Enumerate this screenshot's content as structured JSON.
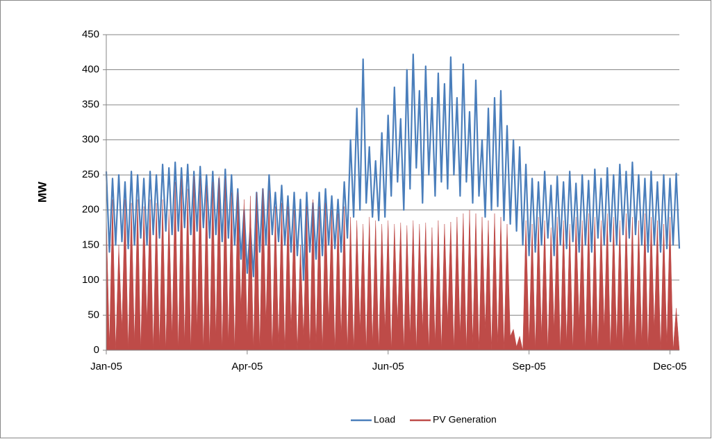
{
  "chart_data": {
    "type": "line",
    "ylabel": "MW",
    "categories": [
      "Jan-05",
      null,
      null,
      null,
      null,
      null,
      null,
      null,
      null,
      null,
      null,
      null,
      null,
      null,
      null,
      null,
      null,
      null,
      null,
      null,
      null,
      null,
      null,
      null,
      null,
      null,
      null,
      null,
      null,
      null,
      null,
      null,
      null,
      null,
      null,
      null,
      null,
      null,
      null,
      null,
      null,
      null,
      null,
      null,
      null,
      "Apr-05",
      null,
      null,
      null,
      null,
      null,
      null,
      null,
      null,
      null,
      null,
      null,
      null,
      null,
      null,
      null,
      null,
      null,
      null,
      null,
      null,
      null,
      null,
      null,
      null,
      null,
      null,
      null,
      null,
      null,
      null,
      null,
      null,
      null,
      null,
      null,
      null,
      null,
      null,
      null,
      null,
      null,
      null,
      null,
      null,
      "Jun-05",
      null,
      null,
      null,
      null,
      null,
      null,
      null,
      null,
      null,
      null,
      null,
      null,
      null,
      null,
      null,
      null,
      null,
      null,
      null,
      null,
      null,
      null,
      null,
      null,
      null,
      null,
      null,
      null,
      null,
      null,
      null,
      null,
      null,
      null,
      null,
      null,
      null,
      null,
      null,
      null,
      null,
      null,
      null,
      null,
      "Sep-05",
      null,
      null,
      null,
      null,
      null,
      null,
      null,
      null,
      null,
      null,
      null,
      null,
      null,
      null,
      null,
      null,
      null,
      null,
      null,
      null,
      null,
      null,
      null,
      null,
      null,
      null,
      null,
      null,
      null,
      null,
      null,
      null,
      null,
      null,
      null,
      null,
      null,
      null,
      null,
      null,
      null,
      null,
      null,
      null,
      "Dec-05",
      null,
      null,
      null
    ],
    "series": [
      {
        "name": "Load",
        "color": "#4a7ebb",
        "style": "line",
        "values": [
          255,
          140,
          245,
          150,
          250,
          155,
          240,
          145,
          255,
          150,
          250,
          160,
          245,
          150,
          255,
          165,
          250,
          160,
          265,
          170,
          260,
          165,
          268,
          170,
          260,
          175,
          265,
          165,
          255,
          170,
          262,
          175,
          250,
          160,
          255,
          165,
          245,
          155,
          258,
          160,
          250,
          150,
          230,
          130,
          200,
          110,
          175,
          105,
          225,
          140,
          230,
          150,
          250,
          165,
          225,
          155,
          235,
          150,
          220,
          140,
          225,
          135,
          215,
          100,
          225,
          140,
          210,
          130,
          225,
          135,
          230,
          150,
          220,
          145,
          215,
          140,
          240,
          160,
          300,
          190,
          345,
          200,
          415,
          210,
          290,
          190,
          270,
          185,
          310,
          190,
          335,
          220,
          375,
          240,
          330,
          200,
          400,
          230,
          422,
          260,
          370,
          210,
          405,
          250,
          360,
          220,
          395,
          240,
          380,
          230,
          418,
          250,
          360,
          220,
          408,
          240,
          340,
          210,
          385,
          220,
          300,
          190,
          345,
          200,
          360,
          205,
          370,
          185,
          320,
          180,
          300,
          170,
          290,
          150,
          265,
          135,
          245,
          140,
          240,
          150,
          255,
          160,
          235,
          135,
          248,
          150,
          240,
          145,
          255,
          155,
          238,
          140,
          250,
          150,
          242,
          140,
          258,
          160,
          245,
          150,
          260,
          155,
          250,
          150,
          265,
          165,
          255,
          160,
          268,
          165,
          250,
          150,
          245,
          140,
          255,
          150,
          240,
          140,
          250,
          145,
          245,
          150,
          252,
          145
        ]
      },
      {
        "name": "PV Generation",
        "color": "#be4b48",
        "style": "area",
        "values": [
          195,
          5,
          215,
          0,
          150,
          30,
          215,
          0,
          210,
          10,
          215,
          0,
          205,
          40,
          215,
          0,
          210,
          5,
          215,
          0,
          200,
          20,
          240,
          0,
          245,
          10,
          230,
          0,
          248,
          30,
          245,
          0,
          235,
          0,
          240,
          20,
          248,
          0,
          245,
          10,
          225,
          0,
          225,
          60,
          215,
          20,
          220,
          0,
          225,
          0,
          230,
          40,
          228,
          0,
          205,
          10,
          210,
          0,
          205,
          30,
          200,
          0,
          150,
          20,
          205,
          0,
          215,
          10,
          205,
          0,
          210,
          40,
          200,
          0,
          195,
          20,
          205,
          0,
          190,
          0,
          185,
          30,
          180,
          0,
          190,
          10,
          185,
          0,
          180,
          30,
          185,
          0,
          180,
          40,
          182,
          0,
          178,
          20,
          185,
          0,
          180,
          30,
          182,
          0,
          175,
          10,
          185,
          0,
          180,
          40,
          183,
          0,
          190,
          20,
          195,
          0,
          200,
          10,
          195,
          0,
          190,
          30,
          185,
          0,
          195,
          10,
          190,
          0,
          180,
          20,
          30,
          5,
          20,
          0,
          185,
          10,
          180,
          0,
          190,
          20,
          185,
          0,
          175,
          30,
          190,
          0,
          185,
          10,
          180,
          0,
          190,
          40,
          185,
          0,
          195,
          10,
          190,
          0,
          185,
          30,
          195,
          0,
          190,
          10,
          185,
          0,
          195,
          20,
          190,
          0,
          185,
          10,
          195,
          0,
          190,
          30,
          185,
          0,
          180,
          10,
          190,
          0,
          60,
          0
        ]
      }
    ],
    "ylim": [
      0,
      450
    ],
    "yticks": [
      0,
      50,
      100,
      150,
      200,
      250,
      300,
      350,
      400,
      450
    ],
    "grid": true,
    "legend": "bottom"
  }
}
